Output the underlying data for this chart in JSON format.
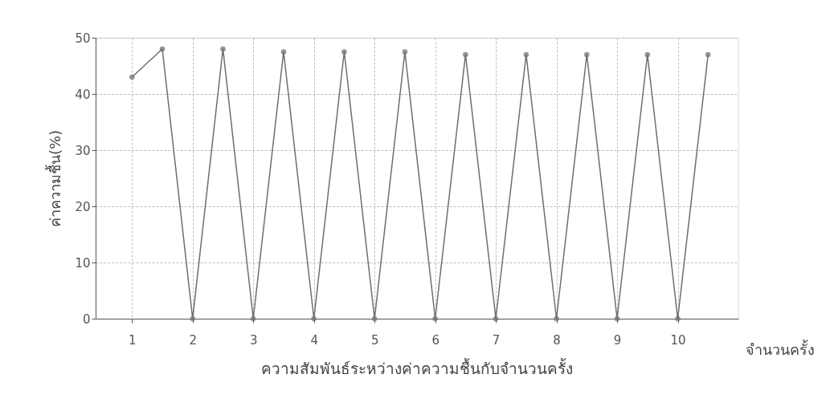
{
  "chart_data": {
    "type": "line",
    "xlabel": "จำนวนครั้ง",
    "ylabel": "ค่าความชื้น(%)",
    "annotations": [
      "ความสัมพันธ์ระหว่างค่าความชื้นกับจำนวนครั้ง"
    ],
    "x": [
      1,
      1.5,
      2,
      2.5,
      3,
      3.5,
      4,
      4.5,
      5,
      5.5,
      6,
      6.5,
      7,
      7.5,
      8,
      8.5,
      9,
      9.5,
      10,
      10.5
    ],
    "series": [
      {
        "color": "#6e6e6e",
        "values": [
          43,
          48,
          0,
          48,
          0,
          47.5,
          0,
          47.5,
          0,
          47.5,
          0,
          47,
          0,
          47,
          0,
          47,
          0,
          47,
          0,
          47
        ]
      }
    ],
    "xlim": [
      0.4,
      11
    ],
    "xticks": [
      1,
      2,
      3,
      4,
      5,
      6,
      7,
      8,
      9,
      10
    ],
    "ylim": [
      0,
      50
    ],
    "yticks": [
      0,
      10,
      20,
      30,
      40,
      50
    ],
    "grid": true,
    "marker": "circle",
    "line_style": "solid"
  }
}
